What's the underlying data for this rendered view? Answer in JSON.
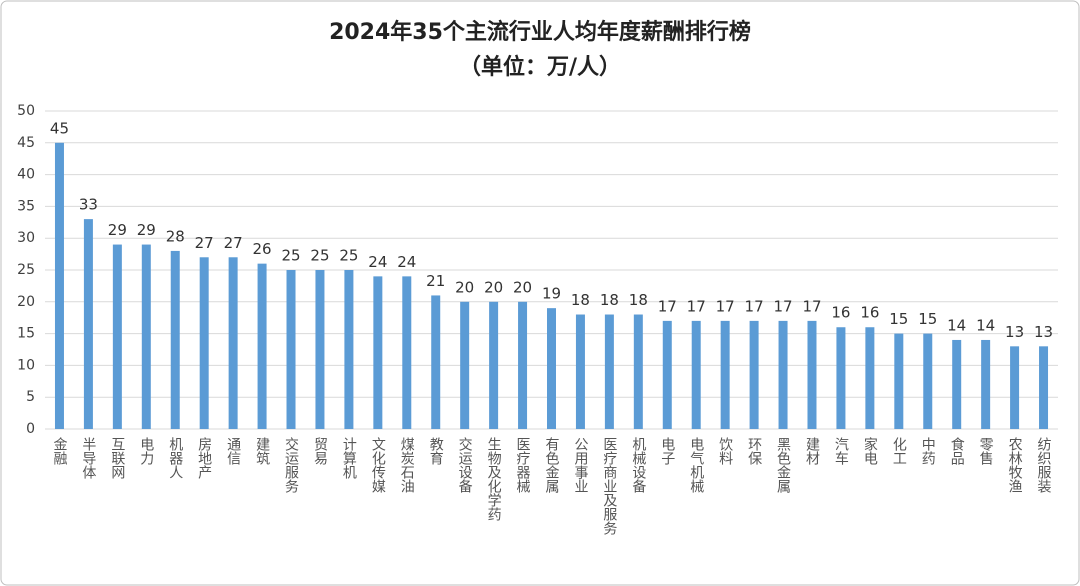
{
  "chart_data": {
    "type": "bar",
    "title": "2024年35个主流行业人均年度薪酬排行榜",
    "subtitle": "（单位：万/人）",
    "categories": [
      "金融",
      "半导体",
      "互联网",
      "电力",
      "机器人",
      "房地产",
      "通信",
      "建筑",
      "交运服务",
      "贸易",
      "计算机",
      "文化传媒",
      "煤炭石油",
      "教育",
      "交运设备",
      "生物及化学药",
      "医疗器械",
      "有色金属",
      "公用事业",
      "医疗商业及服务",
      "机械设备",
      "电子",
      "电气机械",
      "饮料",
      "环保",
      "黑色金属",
      "建材",
      "汽车",
      "家电",
      "化工",
      "中药",
      "食品",
      "零售",
      "农林牧渔",
      "纺织服装"
    ],
    "values": [
      45,
      33,
      29,
      29,
      28,
      27,
      27,
      26,
      25,
      25,
      25,
      24,
      24,
      21,
      20,
      20,
      20,
      19,
      18,
      18,
      18,
      17,
      17,
      17,
      17,
      17,
      17,
      16,
      16,
      15,
      15,
      14,
      14,
      13,
      13
    ],
    "color": "#5b9bd5",
    "ylim": [
      0,
      50
    ],
    "yticks": [
      0,
      5,
      10,
      15,
      20,
      25,
      30,
      35,
      40,
      45,
      50
    ],
    "grid": true
  }
}
